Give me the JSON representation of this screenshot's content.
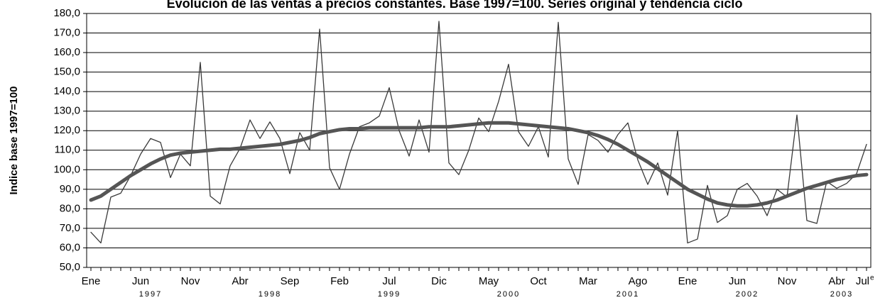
{
  "chart_data": {
    "type": "line",
    "title": "Evolución de las ventas a precios constantes. Base 1997=100. Series original y tendencia ciclo",
    "ylabel": "Indice base 1997=100",
    "categories": [
      "Ene",
      null,
      null,
      null,
      null,
      "Jun",
      null,
      null,
      null,
      null,
      "Nov",
      null,
      null,
      null,
      null,
      "Abr",
      null,
      null,
      null,
      null,
      "Sep",
      null,
      null,
      null,
      null,
      "Feb",
      null,
      null,
      null,
      null,
      "Jul",
      null,
      null,
      null,
      null,
      "Dic",
      null,
      null,
      null,
      null,
      "May",
      null,
      null,
      null,
      null,
      "Oct",
      null,
      null,
      null,
      null,
      "Mar",
      null,
      null,
      null,
      null,
      "Ago",
      null,
      null,
      null,
      null,
      "Ene",
      null,
      null,
      null,
      null,
      "Jun",
      null,
      null,
      null,
      null,
      "Nov",
      null,
      null,
      null,
      null,
      "Abr",
      null,
      null,
      "Jul"
    ],
    "year_labels": [
      "1997",
      "1998",
      "1999",
      "2000",
      "2001",
      "2002",
      "2003"
    ],
    "annotation": "e",
    "series": [
      {
        "name": "Serie original",
        "color": "#3a3a3a",
        "width": 1.3,
        "values": [
          68,
          62.5,
          86,
          88,
          97,
          108,
          116,
          114,
          96,
          108,
          102,
          155,
          86.5,
          82.5,
          102,
          111,
          125.5,
          116,
          124.5,
          116,
          98,
          119,
          110,
          172,
          101,
          90,
          108,
          122,
          124,
          127.5,
          142,
          120,
          107,
          125.5,
          109,
          176,
          103.5,
          97.5,
          110,
          126.5,
          119.5,
          135,
          154,
          119.5,
          112,
          122,
          106.5,
          175.5,
          105.5,
          92.5,
          118,
          115,
          109,
          118,
          124,
          105,
          92.5,
          103.5,
          87,
          120,
          62.5,
          64.5,
          92,
          73,
          76.5,
          90,
          93,
          86.5,
          76.5,
          90,
          86,
          128,
          74,
          72.5,
          94,
          90.5,
          93,
          98,
          113
        ]
      },
      {
        "name": "Tendencia ciclo",
        "color": "#555555",
        "width": 5,
        "values": [
          84.5,
          86.5,
          90,
          93.5,
          97,
          100,
          103,
          105.5,
          107.5,
          108.5,
          109,
          109.5,
          110,
          110.5,
          110.5,
          111,
          111.5,
          112,
          112.5,
          113,
          114,
          115,
          116.5,
          118.5,
          119.5,
          120.5,
          121,
          121,
          121.5,
          121.5,
          121.5,
          121.5,
          121.5,
          121.5,
          122,
          122,
          122,
          122.5,
          123,
          123.5,
          124,
          124,
          124,
          123.5,
          123,
          122.5,
          122,
          121.5,
          121,
          120,
          119,
          117.5,
          115.5,
          113,
          110,
          107,
          104,
          100.5,
          97,
          93.5,
          90,
          87.5,
          85,
          83,
          82,
          81.5,
          81.5,
          82,
          83,
          84.5,
          86.5,
          88.5,
          90.5,
          92,
          93.5,
          95,
          96,
          97,
          97.5
        ]
      }
    ],
    "ylim": [
      50,
      180
    ],
    "yticks": [
      {
        "value": 50,
        "label": "50,0"
      },
      {
        "value": 60,
        "label": "60,0"
      },
      {
        "value": 70,
        "label": "70,0"
      },
      {
        "value": 80,
        "label": "80,0"
      },
      {
        "value": 90,
        "label": "90,0"
      },
      {
        "value": 100,
        "label": "100,0"
      },
      {
        "value": 110,
        "label": "110,0"
      },
      {
        "value": 120,
        "label": "120,0"
      },
      {
        "value": 130,
        "label": "130,0"
      },
      {
        "value": 140,
        "label": "140,0"
      },
      {
        "value": 150,
        "label": "150,0"
      },
      {
        "value": 160,
        "label": "160,0"
      },
      {
        "value": 170,
        "label": "170,0"
      },
      {
        "value": 180,
        "label": "180,0"
      }
    ],
    "grid": true
  }
}
